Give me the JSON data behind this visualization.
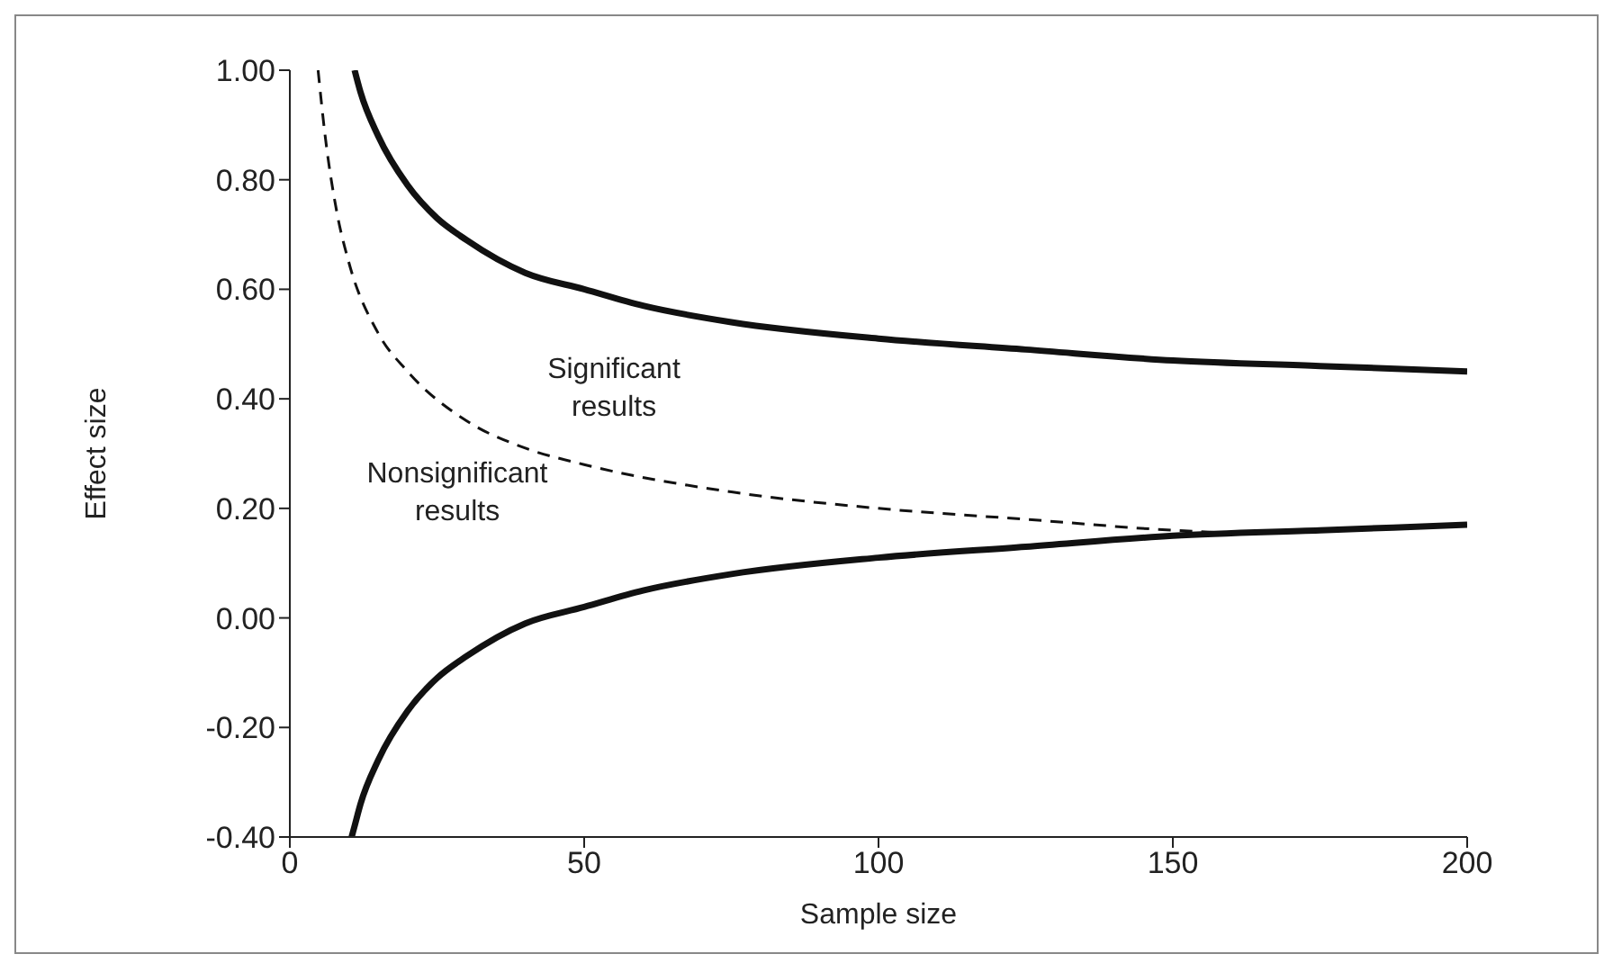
{
  "chart_data": {
    "type": "line",
    "xlabel": "Sample size",
    "ylabel": "Effect size",
    "xlim": [
      0,
      200
    ],
    "xticks": [
      0,
      50,
      100,
      150,
      200
    ],
    "ylim": [
      -0.4,
      1
    ],
    "yticks": [
      {
        "value": -0.4,
        "label": "-0.40"
      },
      {
        "value": -0.2,
        "label": "-0.20"
      },
      {
        "value": 0,
        "label": "0.00"
      },
      {
        "value": 0.2,
        "label": "0.20"
      },
      {
        "value": 0.4,
        "label": "0.40"
      },
      {
        "value": 0.6,
        "label": "0.60"
      },
      {
        "value": 0.8,
        "label": "0.80"
      },
      {
        "value": 1,
        "label": "1.00"
      }
    ],
    "marker": "none",
    "series": [
      {
        "color": "#111111",
        "line_style": "solid",
        "x": [
          11,
          12,
          15,
          20,
          25,
          30,
          40,
          50,
          60,
          75,
          100,
          125,
          150,
          175,
          200
        ],
        "values": [
          1.0,
          0.96,
          0.88,
          0.79,
          0.73,
          0.69,
          0.63,
          0.6,
          0.57,
          0.54,
          0.51,
          0.49,
          0.47,
          0.46,
          0.45
        ]
      },
      {
        "color": "#111111",
        "line_style": "solid",
        "x": [
          10.5,
          11,
          12,
          15,
          20,
          25,
          30,
          40,
          50,
          60,
          75,
          100,
          125,
          150,
          175,
          200
        ],
        "values": [
          -0.4,
          -0.38,
          -0.34,
          -0.26,
          -0.17,
          -0.11,
          -0.07,
          -0.01,
          0.02,
          0.05,
          0.08,
          0.11,
          0.13,
          0.15,
          0.16,
          0.17
        ]
      },
      {
        "color": "#111111",
        "line_style": "dashed",
        "x": [
          4.8,
          6,
          8,
          10,
          15,
          20,
          30,
          40,
          50,
          75,
          100,
          125,
          150,
          160
        ],
        "values": [
          1.0,
          0.88,
          0.74,
          0.65,
          0.52,
          0.45,
          0.36,
          0.31,
          0.28,
          0.23,
          0.2,
          0.18,
          0.16,
          0.155
        ]
      }
    ],
    "annotations": [
      "Significant results",
      "Nonsignificant results"
    ]
  }
}
